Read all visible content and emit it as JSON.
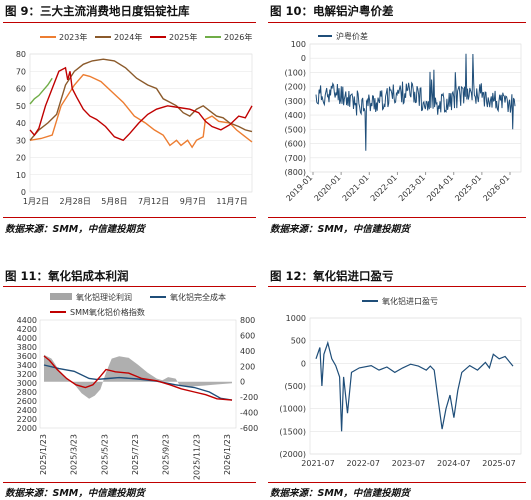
{
  "titles": {
    "p1": "图 9：三大主流消费地日度铝锭社库",
    "p2": "图 10：电解铝沪粤价差",
    "p3": "图 11：氧化铝成本利润",
    "p4": "图 12：氧化铝进口盈亏"
  },
  "sources": {
    "p1": "数据来源：SMM，中信建投期货",
    "p2": "数据来源：SMM，中信建投期货",
    "p3": "数据来源：SMM，中信建投期货",
    "p4": "数据来源：SMM，中信建投期货"
  },
  "chart_data": [
    {
      "id": "p1",
      "type": "line",
      "title": "图 9：三大主流消费地日度铝锭社库",
      "x_ticks": [
        "1月2日",
        "2月28日",
        "5月8日",
        "7月12日",
        "9月7日",
        "11月7日"
      ],
      "ylim": [
        0,
        80
      ],
      "y_ticks": [
        0,
        10,
        20,
        30,
        40,
        50,
        60,
        70,
        80
      ],
      "legend_position": "top",
      "series": [
        {
          "name": "2023年",
          "color": "#ed7d31",
          "points": [
            [
              0,
              30
            ],
            [
              0.05,
              31
            ],
            [
              0.1,
              33
            ],
            [
              0.14,
              50
            ],
            [
              0.2,
              62
            ],
            [
              0.24,
              68
            ],
            [
              0.27,
              67
            ],
            [
              0.32,
              64
            ],
            [
              0.37,
              58
            ],
            [
              0.42,
              52
            ],
            [
              0.47,
              44
            ],
            [
              0.52,
              40
            ],
            [
              0.56,
              36
            ],
            [
              0.6,
              33
            ],
            [
              0.63,
              27
            ],
            [
              0.66,
              30
            ],
            [
              0.68,
              27
            ],
            [
              0.71,
              30
            ],
            [
              0.73,
              26
            ],
            [
              0.75,
              30
            ],
            [
              0.78,
              32
            ],
            [
              0.79,
              42
            ],
            [
              0.82,
              44
            ],
            [
              0.85,
              41
            ],
            [
              0.9,
              40
            ],
            [
              0.93,
              36
            ],
            [
              0.96,
              33
            ],
            [
              1,
              29
            ]
          ]
        },
        {
          "name": "2024年",
          "color": "#8b5a2b",
          "points": [
            [
              0,
              30
            ],
            [
              0.04,
              36
            ],
            [
              0.08,
              40
            ],
            [
              0.12,
              45
            ],
            [
              0.16,
              62
            ],
            [
              0.2,
              70
            ],
            [
              0.24,
              74
            ],
            [
              0.28,
              76
            ],
            [
              0.33,
              77
            ],
            [
              0.38,
              76
            ],
            [
              0.43,
              72
            ],
            [
              0.48,
              66
            ],
            [
              0.53,
              62
            ],
            [
              0.57,
              60
            ],
            [
              0.6,
              54
            ],
            [
              0.63,
              52
            ],
            [
              0.66,
              50
            ],
            [
              0.69,
              46
            ],
            [
              0.72,
              44
            ],
            [
              0.75,
              48
            ],
            [
              0.78,
              50
            ],
            [
              0.81,
              47
            ],
            [
              0.84,
              44
            ],
            [
              0.87,
              43
            ],
            [
              0.9,
              40
            ],
            [
              0.94,
              38
            ],
            [
              0.97,
              36
            ],
            [
              1,
              35
            ]
          ]
        },
        {
          "name": "2025年",
          "color": "#c00000",
          "points": [
            [
              0,
              36
            ],
            [
              0.02,
              33
            ],
            [
              0.04,
              37
            ],
            [
              0.07,
              50
            ],
            [
              0.1,
              60
            ],
            [
              0.13,
              70
            ],
            [
              0.16,
              72
            ],
            [
              0.17,
              65
            ],
            [
              0.18,
              70
            ],
            [
              0.19,
              60
            ],
            [
              0.21,
              55
            ],
            [
              0.24,
              48
            ],
            [
              0.27,
              44
            ],
            [
              0.3,
              42
            ],
            [
              0.34,
              38
            ],
            [
              0.38,
              32
            ],
            [
              0.42,
              30
            ],
            [
              0.45,
              34
            ],
            [
              0.49,
              40
            ],
            [
              0.53,
              45
            ],
            [
              0.57,
              48
            ],
            [
              0.62,
              50
            ],
            [
              0.67,
              49
            ],
            [
              0.72,
              48
            ],
            [
              0.76,
              46
            ],
            [
              0.79,
              41
            ],
            [
              0.82,
              38
            ],
            [
              0.86,
              36
            ],
            [
              0.9,
              39
            ],
            [
              0.94,
              44
            ],
            [
              0.97,
              43
            ],
            [
              1,
              50
            ]
          ]
        },
        {
          "name": "2026年",
          "color": "#70ad47",
          "points": [
            [
              0,
              51
            ],
            [
              0.02,
              54
            ],
            [
              0.04,
              56
            ],
            [
              0.06,
              59
            ],
            [
              0.08,
              62
            ],
            [
              0.1,
              66
            ]
          ]
        }
      ]
    },
    {
      "id": "p2",
      "type": "line",
      "title": "图 10：电解铝沪粤价差",
      "x_ticks": [
        "2019-01",
        "2020-01",
        "2021-01",
        "2022-01",
        "2023-01",
        "2024-01",
        "2025-01",
        "2026-01"
      ],
      "ylim": [
        -800,
        100
      ],
      "y_ticks": [
        100,
        0,
        -100,
        -200,
        -300,
        -400,
        -500,
        -600,
        -700,
        -800
      ],
      "y_tick_labels": [
        "100",
        "0",
        "(100)",
        "(200)",
        "(300)",
        "(400)",
        "(500)",
        "(600)",
        "(700)",
        "(800)"
      ],
      "legend_position": "top-left",
      "series": [
        {
          "name": "沪粤价差",
          "color": "#1f4e79"
        }
      ]
    },
    {
      "id": "p3",
      "type": "area+line",
      "title": "图 11：氧化铝成本利润",
      "x_ticks": [
        "2025/1/23",
        "2025/3/23",
        "2025/5/23",
        "2025/7/23",
        "2025/9/23",
        "2025/11/23",
        "2026/1/23"
      ],
      "y_left": [
        2000,
        4400
      ],
      "y_left_ticks": [
        2000,
        2200,
        2400,
        2600,
        2800,
        3000,
        3200,
        3400,
        3600,
        3800,
        4000,
        4200,
        4400
      ],
      "y_right": [
        -600,
        800
      ],
      "y_right_ticks": [
        800,
        600,
        400,
        200,
        0,
        -200,
        -400,
        -600
      ],
      "legend_position": "top",
      "series": [
        {
          "name": "氧化铝理论利润",
          "color": "#a6a6a6",
          "axis": "right"
        },
        {
          "name": "氧化铝完全成本",
          "color": "#1f4e79",
          "axis": "left"
        },
        {
          "name": "SMM氧化铝价格指数",
          "color": "#c00000",
          "axis": "left"
        }
      ]
    },
    {
      "id": "p4",
      "type": "line",
      "title": "图 12：氧化铝进口盈亏",
      "x_ticks": [
        "2021-07",
        "2022-07",
        "2023-07",
        "2024-07",
        "2025-07"
      ],
      "ylim": [
        -2000,
        1000
      ],
      "y_ticks": [
        1000,
        500,
        0,
        -500,
        -1000,
        -1500,
        -2000
      ],
      "y_tick_labels": [
        "1000",
        "500",
        "0",
        "(500)",
        "(1000)",
        "(1500)",
        "(2000)"
      ],
      "legend_position": "top",
      "series": [
        {
          "name": "氧化铝进口盈亏",
          "color": "#1f4e79"
        }
      ]
    }
  ]
}
